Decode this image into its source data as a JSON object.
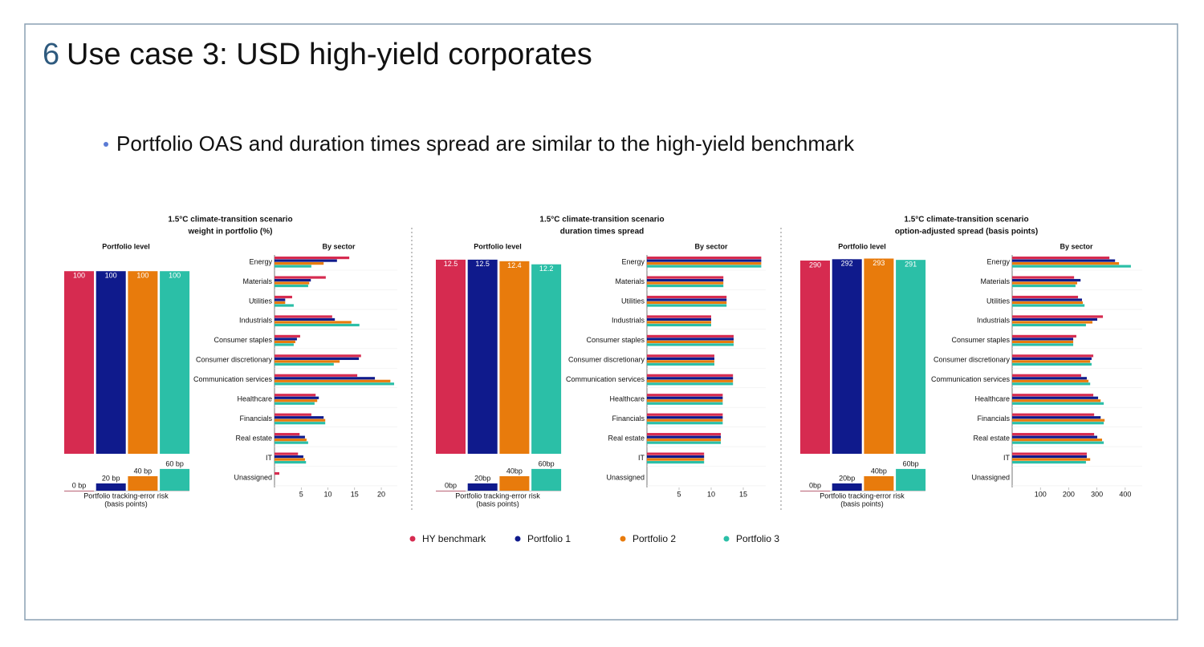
{
  "slide": {
    "number": "6",
    "title": "Use case 3: USD high-yield corporates",
    "bullet": "Portfolio OAS and duration times spread are similar to the high-yield benchmark"
  },
  "legend": [
    {
      "name": "HY benchmark",
      "color": "#d62b50"
    },
    {
      "name": "Portfolio 1",
      "color": "#0f1a8c"
    },
    {
      "name": "Portfolio 2",
      "color": "#e87b0c"
    },
    {
      "name": "Portfolio 3",
      "color": "#2bbfa7"
    }
  ],
  "chart_data": [
    {
      "type": "panel",
      "title": [
        "1.5°C climate-transition scenario",
        "weight in portfolio  (%)"
      ],
      "level": {
        "type": "bar",
        "title": "Portfolio level",
        "values": [
          100,
          100,
          100,
          100
        ],
        "ylim": [
          0,
          108
        ]
      },
      "tracking": {
        "type": "bar",
        "title": [
          "Portfolio tracking-error risk",
          "(basis points)"
        ],
        "values": [
          0,
          20,
          40,
          60
        ],
        "value_labels": [
          "0 bp",
          "20 bp",
          "40 bp",
          "60 bp"
        ],
        "ylim": [
          0,
          62
        ]
      },
      "sector": {
        "type": "hbar",
        "title": "By sector",
        "categories": [
          "Energy",
          "Materials",
          "Utilities",
          "Industrials",
          "Consumer staples",
          "Consumer discretionary",
          "Communication services",
          "Healthcare",
          "Financials",
          "Real estate",
          "IT",
          "Unassigned"
        ],
        "series": [
          {
            "values": [
              14,
              9.6,
              3.3,
              10.8,
              4.8,
              16.2,
              15.5,
              7.7,
              6.9,
              4.7,
              4.4,
              0.9
            ]
          },
          {
            "values": [
              11.7,
              6.8,
              2,
              11.3,
              4.2,
              15.8,
              18.8,
              8.3,
              9.2,
              5.7,
              5.4,
              0
            ]
          },
          {
            "values": [
              9.2,
              6.5,
              2,
              14.4,
              3.9,
              12.2,
              21.7,
              8,
              9.5,
              6,
              5.7,
              0
            ]
          },
          {
            "values": [
              6.9,
              6.3,
              3.6,
              15.9,
              3.6,
              11.1,
              22.4,
              7.5,
              9.5,
              6.3,
              5.9,
              0
            ]
          }
        ],
        "xlim": [
          0,
          23
        ],
        "xticks": [
          5,
          10,
          15,
          20
        ]
      }
    },
    {
      "type": "panel",
      "title": [
        "1.5°C climate-transition scenario",
        "duration times spread"
      ],
      "level": {
        "type": "bar",
        "title": "Portfolio level",
        "values": [
          12.5,
          12.5,
          12.4,
          12.2
        ],
        "ylim": [
          0,
          12.7
        ]
      },
      "tracking": {
        "type": "bar",
        "title": [
          "Portfolio tracking-error risk",
          "(basis points)"
        ],
        "values": [
          0,
          20,
          40,
          60
        ],
        "value_labels": [
          "0bp",
          "20bp",
          "40bp",
          "60bp"
        ],
        "ylim": [
          0,
          62
        ]
      },
      "sector": {
        "type": "hbar",
        "title": "By sector",
        "categories": [
          "Energy",
          "Materials",
          "Utilities",
          "Industrials",
          "Consumer staples",
          "Consumer discretionary",
          "Communication services",
          "Healthcare",
          "Financials",
          "Real estate",
          "IT",
          "Unassigned"
        ],
        "series": [
          {
            "values": [
              17.8,
              11.9,
              12.4,
              10,
              13.5,
              10.5,
              13.4,
              11.8,
              11.8,
              11.5,
              8.9,
              0
            ]
          },
          {
            "values": [
              17.8,
              11.9,
              12.4,
              10,
              13.5,
              10.5,
              13.4,
              11.8,
              11.8,
              11.5,
              8.9,
              0
            ]
          },
          {
            "values": [
              17.8,
              11.9,
              12.4,
              10,
              13.5,
              10.5,
              13.4,
              11.8,
              11.8,
              11.5,
              8.9,
              0
            ]
          },
          {
            "values": [
              17.8,
              11.9,
              12.4,
              10,
              13.5,
              10.5,
              13.4,
              11.8,
              11.8,
              11.5,
              8.9,
              0
            ]
          }
        ],
        "xlim": [
          0,
          18.5
        ],
        "xticks": [
          5,
          10,
          15
        ]
      }
    },
    {
      "type": "panel",
      "title": [
        "1.5°C climate-transition scenario",
        "option-adjusted spread  (basis points)"
      ],
      "level": {
        "type": "bar",
        "title": "Portfolio level",
        "values": [
          290,
          292,
          293,
          291
        ],
        "ylim": [
          0,
          296
        ]
      },
      "tracking": {
        "type": "bar",
        "title": [
          "Portfolio tracking-error risk",
          "(basis points)"
        ],
        "values": [
          0,
          20,
          40,
          60
        ],
        "value_labels": [
          "0bp",
          "20bp",
          "40bp",
          "60bp"
        ],
        "ylim": [
          0,
          62
        ]
      },
      "sector": {
        "type": "hbar",
        "title": "By sector",
        "categories": [
          "Energy",
          "Materials",
          "Utilities",
          "Industrials",
          "Consumer staples",
          "Consumer discretionary",
          "Communication services",
          "Healthcare",
          "Financials",
          "Real estate",
          "IT",
          "Unassigned"
        ],
        "series": [
          {
            "values": [
              344,
              219,
              233,
              321,
              227,
              287,
              244,
              287,
              290,
              290,
              264,
              0
            ]
          },
          {
            "values": [
              364,
              242,
              247,
              301,
              216,
              281,
              264,
              304,
              313,
              301,
              264,
              0
            ]
          },
          {
            "values": [
              378,
              230,
              250,
              284,
              216,
              276,
              270,
              313,
              327,
              318,
              276,
              0
            ]
          },
          {
            "values": [
              420,
              224,
              256,
              261,
              216,
              281,
              276,
              324,
              324,
              324,
              261,
              0
            ]
          }
        ],
        "xlim": [
          0,
          460
        ],
        "xticks": [
          100,
          200,
          300,
          400
        ]
      }
    }
  ]
}
